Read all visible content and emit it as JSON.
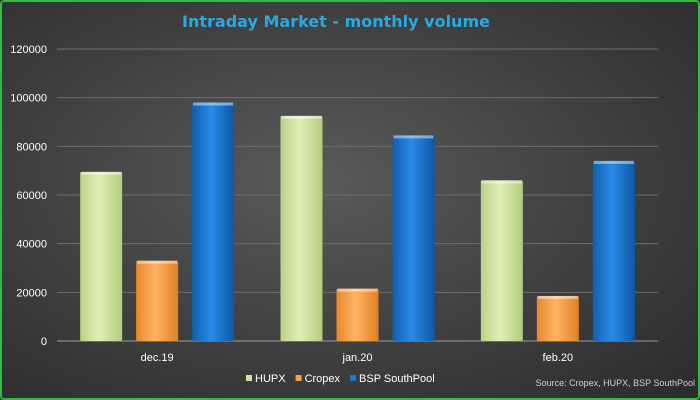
{
  "chart_data": {
    "type": "bar",
    "title": "Intraday Market - monthly volume",
    "categories": [
      "dec.19",
      "jan.20",
      "feb.20"
    ],
    "series": [
      {
        "name": "HUPX",
        "color": "#cfe3a0",
        "values": [
          69500,
          92500,
          66000
        ]
      },
      {
        "name": "Cropex",
        "color": "#f7a04a",
        "values": [
          33000,
          21500,
          18500
        ]
      },
      {
        "name": "BSP SouthPool",
        "color": "#1b78d0",
        "values": [
          98000,
          84500,
          74000
        ]
      }
    ],
    "ylim": [
      0,
      120000
    ],
    "yticks": [
      0,
      20000,
      40000,
      60000,
      80000,
      100000,
      120000
    ],
    "grid": true,
    "legend_position": "bottom",
    "source": "Source: Cropex, HUPX, BSP SouthPool"
  }
}
